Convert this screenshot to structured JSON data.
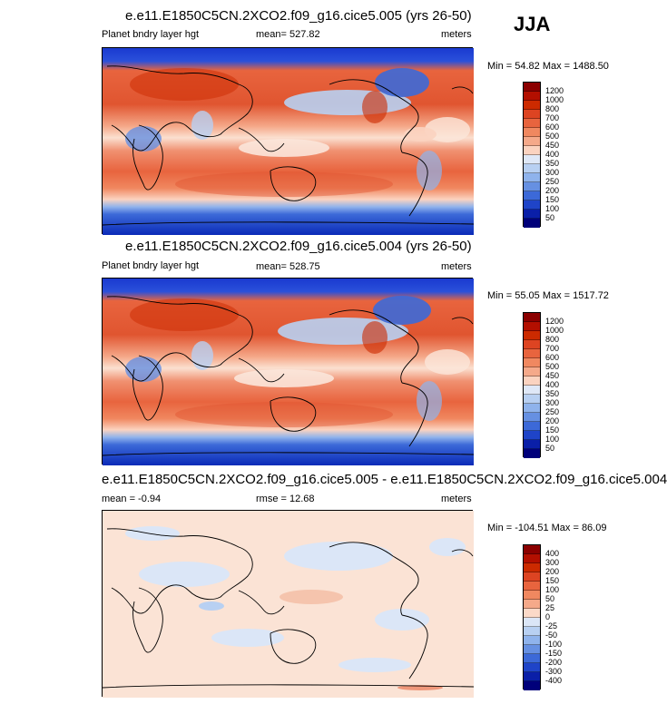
{
  "season": "JJA",
  "panels": [
    {
      "title": "e.e11.E1850C5CN.2XCO2.f09_g16.cice5.005 (yrs 26-50)",
      "left_label": "Planet bndry layer hgt",
      "center_label": "mean= 527.82",
      "right_label": "meters",
      "minmax": "Min =  54.82 Max = 1488.50",
      "colorbar": {
        "levels": [
          "1200",
          "1000",
          "800",
          "700",
          "600",
          "500",
          "450",
          "400",
          "350",
          "300",
          "250",
          "200",
          "150",
          "100",
          "50"
        ],
        "colors": [
          "#8b0000",
          "#b30f00",
          "#cc2a00",
          "#dd4422",
          "#e8643e",
          "#f08860",
          "#f5a98a",
          "#fbd3c0",
          "#dfe8f7",
          "#b8d0f2",
          "#8fb3ec",
          "#6690e2",
          "#3c69d8",
          "#1f44c8",
          "#0a1fa8",
          "#00007a"
        ]
      }
    },
    {
      "title": "e.e11.E1850C5CN.2XCO2.f09_g16.cice5.004 (yrs 26-50)",
      "left_label": "Planet bndry layer hgt",
      "center_label": "mean= 528.75",
      "right_label": "meters",
      "minmax": "Min =  55.05 Max = 1517.72",
      "colorbar": {
        "levels": [
          "1200",
          "1000",
          "800",
          "700",
          "600",
          "500",
          "450",
          "400",
          "350",
          "300",
          "250",
          "200",
          "150",
          "100",
          "50"
        ],
        "colors": [
          "#8b0000",
          "#b30f00",
          "#cc2a00",
          "#dd4422",
          "#e8643e",
          "#f08860",
          "#f5a98a",
          "#fbd3c0",
          "#dfe8f7",
          "#b8d0f2",
          "#8fb3ec",
          "#6690e2",
          "#3c69d8",
          "#1f44c8",
          "#0a1fa8",
          "#00007a"
        ]
      }
    },
    {
      "title": "e.e11.E1850C5CN.2XCO2.f09_g16.cice5.005 - e.e11.E1850C5CN.2XCO2.f09_g16.cice5.004",
      "left_label": "mean =  -0.94",
      "center_label": "rmse =  12.68",
      "right_label": "meters",
      "minmax": "Min = -104.51 Max =  86.09",
      "colorbar": {
        "levels": [
          "400",
          "300",
          "200",
          "150",
          "100",
          "50",
          "25",
          "0",
          "-25",
          "-50",
          "-100",
          "-150",
          "-200",
          "-300",
          "-400"
        ],
        "colors": [
          "#8b0000",
          "#b30f00",
          "#cc2a00",
          "#dd4422",
          "#e8643e",
          "#f08860",
          "#f5a98a",
          "#fbd9c8",
          "#dbe6f7",
          "#b8d0f2",
          "#8fb3ec",
          "#6690e2",
          "#3c69d8",
          "#1f44c8",
          "#0a1fa8",
          "#00007a"
        ]
      }
    }
  ]
}
